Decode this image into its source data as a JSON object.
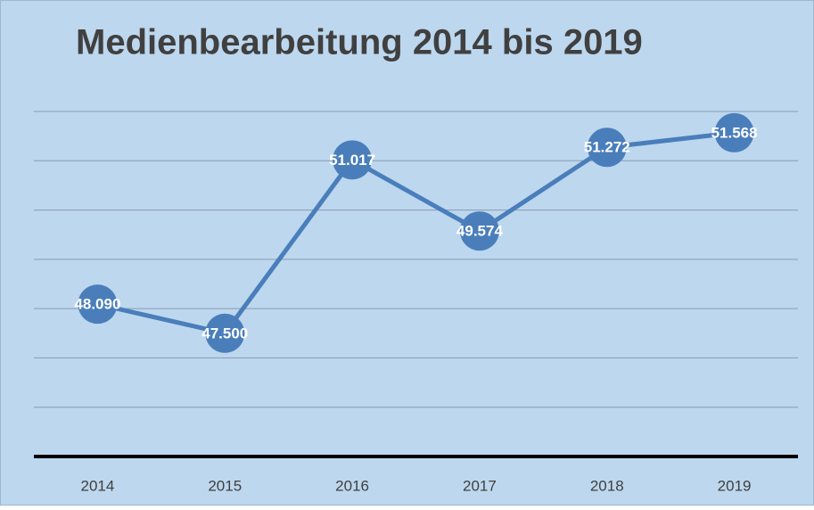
{
  "chart_data": {
    "type": "line",
    "title": "Medienbearbeitung 2014 bis 2019",
    "categories": [
      "2014",
      "2015",
      "2016",
      "2017",
      "2018",
      "2019"
    ],
    "series": [
      {
        "color": "#4a7ebb",
        "values": [
          48090,
          47500,
          51017,
          49574,
          51272,
          51568
        ],
        "value_labels": [
          "48.090",
          "47.500",
          "51.017",
          "49.574",
          "51.272",
          "51.568"
        ]
      }
    ],
    "ylim": [
      45000,
      52000
    ],
    "yticks": [
      45000,
      46000,
      47000,
      48000,
      49000,
      50000,
      51000,
      52000
    ],
    "grid": true
  }
}
